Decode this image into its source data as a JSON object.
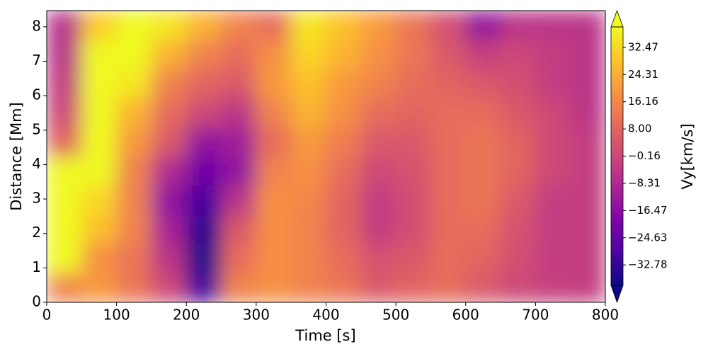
{
  "chart_data": {
    "type": "heatmap",
    "xlabel": "Time [s]",
    "ylabel": "Distance [Mm]",
    "colorbar_label": "Vy[km/s]",
    "colormap": "plasma",
    "x": [
      25,
      75,
      125,
      175,
      225,
      275,
      325,
      375,
      425,
      475,
      525,
      575,
      625,
      675,
      725,
      775
    ],
    "y": [
      0.42,
      1.27,
      2.12,
      2.96,
      3.81,
      4.66,
      5.51,
      6.35,
      7.2,
      8.05
    ],
    "values": [
      [
        15,
        20,
        12,
        0,
        -30,
        15,
        18,
        15,
        12,
        5,
        8,
        10,
        5,
        0,
        -2,
        -3
      ],
      [
        39,
        18,
        12,
        -5,
        -38,
        10,
        18,
        15,
        10,
        3,
        5,
        10,
        8,
        2,
        -3,
        -3
      ],
      [
        39,
        28,
        15,
        -10,
        -36,
        5,
        18,
        15,
        8,
        -3,
        2,
        10,
        10,
        3,
        -3,
        -3
      ],
      [
        39,
        32,
        15,
        -15,
        -30,
        -5,
        18,
        16,
        8,
        -3,
        2,
        10,
        12,
        5,
        -3,
        -3
      ],
      [
        39,
        39,
        15,
        -8,
        -22,
        -15,
        15,
        18,
        10,
        0,
        3,
        10,
        12,
        8,
        0,
        -3
      ],
      [
        8,
        39,
        20,
        5,
        -15,
        -12,
        10,
        20,
        14,
        5,
        5,
        10,
        12,
        8,
        0,
        -3
      ],
      [
        0,
        39,
        25,
        10,
        0,
        -5,
        15,
        25,
        18,
        10,
        8,
        10,
        10,
        5,
        0,
        -5
      ],
      [
        -3,
        39,
        35,
        15,
        8,
        5,
        20,
        28,
        20,
        15,
        10,
        8,
        5,
        2,
        -3,
        -5
      ],
      [
        -5,
        39,
        39,
        25,
        15,
        10,
        18,
        32,
        25,
        18,
        12,
        5,
        -2,
        0,
        -3,
        -5
      ],
      [
        -6,
        30,
        39,
        35,
        25,
        15,
        10,
        35,
        28,
        20,
        12,
        2,
        -15,
        -5,
        -5,
        -5
      ]
    ],
    "xlim": [
      0,
      800
    ],
    "ylim": [
      0,
      8.47
    ],
    "clim": [
      -38.9,
      38.6
    ],
    "xticks": [
      0,
      100,
      200,
      300,
      400,
      500,
      600,
      700,
      800
    ],
    "yticks": [
      0,
      1,
      2,
      3,
      4,
      5,
      6,
      7,
      8
    ],
    "cticks": [
      {
        "value": -32.78,
        "label": "−32.78"
      },
      {
        "value": -24.63,
        "label": "−24.63"
      },
      {
        "value": -16.47,
        "label": "−16.47"
      },
      {
        "value": -8.31,
        "label": "−8.31"
      },
      {
        "value": -0.16,
        "label": "−0.16"
      },
      {
        "value": 8,
        "label": "8.00"
      },
      16.16,
      24.31,
      32.47
    ]
  }
}
